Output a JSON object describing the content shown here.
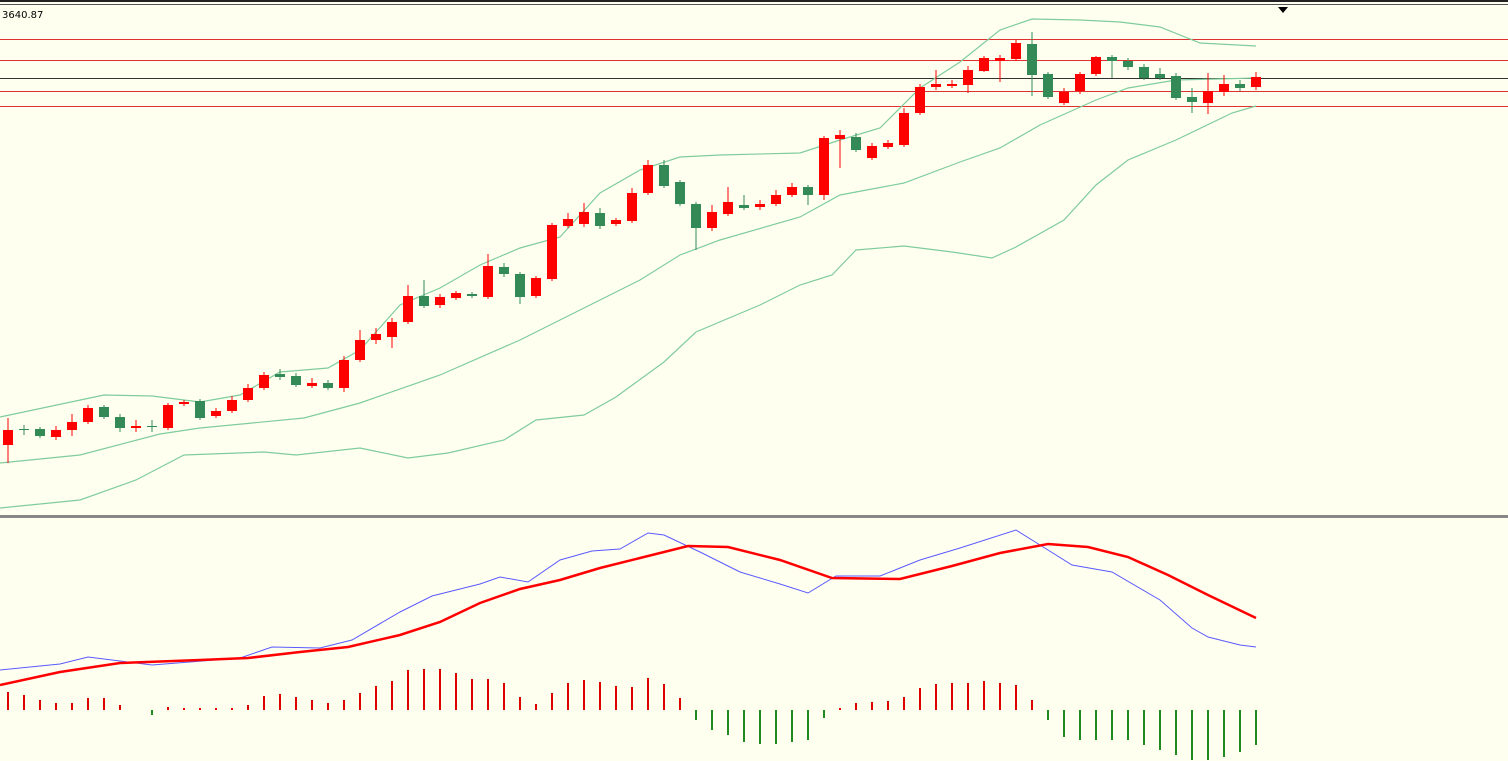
{
  "chart_data": [
    {
      "type": "candlestick",
      "label": "3640.87",
      "ylim": [
        3203,
        3713
      ],
      "up_color": "#ff0000",
      "down_color": "#338a56",
      "open": [
        3273,
        3289,
        3289,
        3281,
        3288,
        3296,
        3311,
        3301,
        3290,
        3292,
        3290,
        3314,
        3317,
        3302,
        3307,
        3318,
        3330,
        3344,
        3342,
        3332,
        3335,
        3330,
        3358,
        3378,
        3381,
        3396,
        3422,
        3413,
        3420,
        3424,
        3421,
        3451,
        3444,
        3422,
        3439,
        3492,
        3494,
        3505,
        3494,
        3497,
        3525,
        3553,
        3536,
        3514,
        3490,
        3504,
        3513,
        3511,
        3514,
        3523,
        3531,
        3523,
        3579,
        3581,
        3560,
        3571,
        3573,
        3605,
        3631,
        3632,
        3633,
        3647,
        3657,
        3659,
        3674,
        3644,
        3615,
        3627,
        3644,
        3661,
        3657,
        3651,
        3644,
        3642,
        3621,
        3615,
        3626,
        3634,
        3631
      ],
      "high": [
        3300,
        3293,
        3291,
        3292,
        3304,
        3313,
        3313,
        3304,
        3298,
        3298,
        3315,
        3318,
        3319,
        3310,
        3322,
        3334,
        3346,
        3349,
        3345,
        3340,
        3338,
        3362,
        3388,
        3390,
        3400,
        3433,
        3438,
        3424,
        3427,
        3426,
        3464,
        3455,
        3446,
        3442,
        3495,
        3505,
        3515,
        3510,
        3500,
        3530,
        3558,
        3558,
        3538,
        3516,
        3513,
        3531,
        3523,
        3518,
        3528,
        3535,
        3533,
        3582,
        3588,
        3585,
        3575,
        3578,
        3610,
        3634,
        3648,
        3638,
        3652,
        3662,
        3663,
        3678,
        3686,
        3646,
        3630,
        3646,
        3662,
        3663,
        3660,
        3654,
        3650,
        3645,
        3630,
        3645,
        3643,
        3638,
        3646
      ],
      "low": [
        3255,
        3283,
        3280,
        3278,
        3282,
        3294,
        3299,
        3286,
        3286,
        3286,
        3288,
        3312,
        3298,
        3300,
        3305,
        3316,
        3328,
        3338,
        3331,
        3330,
        3328,
        3326,
        3356,
        3374,
        3370,
        3394,
        3410,
        3410,
        3418,
        3420,
        3419,
        3441,
        3414,
        3420,
        3437,
        3490,
        3491,
        3489,
        3492,
        3495,
        3523,
        3530,
        3512,
        3468,
        3487,
        3502,
        3508,
        3508,
        3512,
        3521,
        3513,
        3518,
        3550,
        3566,
        3558,
        3569,
        3571,
        3603,
        3628,
        3630,
        3625,
        3646,
        3636,
        3657,
        3622,
        3619,
        3613,
        3624,
        3642,
        3640,
        3648,
        3638,
        3638,
        3618,
        3605,
        3604,
        3622,
        3627,
        3628
      ],
      "close": [
        3288,
        3288,
        3282,
        3288,
        3296,
        3310,
        3301,
        3290,
        3292,
        3291,
        3313,
        3316,
        3300,
        3307,
        3318,
        3330,
        3343,
        3341,
        3333,
        3335,
        3330,
        3358,
        3378,
        3384,
        3396,
        3422,
        3412,
        3421,
        3425,
        3422,
        3452,
        3444,
        3421,
        3440,
        3493,
        3499,
        3506,
        3492,
        3498,
        3525,
        3553,
        3532,
        3514,
        3490,
        3506,
        3516,
        3510,
        3514,
        3523,
        3531,
        3523,
        3580,
        3583,
        3568,
        3572,
        3575,
        3605,
        3631,
        3634,
        3634,
        3648,
        3660,
        3660,
        3675,
        3643,
        3621,
        3626,
        3644,
        3661,
        3657,
        3651,
        3640,
        3640,
        3620,
        3616,
        3627,
        3634,
        3630,
        3641
      ],
      "levels": [
        {
          "value": 3679,
          "color": "#e03030"
        },
        {
          "value": 3658,
          "color": "#e03030"
        },
        {
          "value": 3640,
          "color": "#333333"
        },
        {
          "value": 3627,
          "color": "#e03030"
        },
        {
          "value": 3612,
          "color": "#e03030"
        }
      ],
      "series": [
        {
          "color": "#7fcc9c",
          "x": [
            -0.5,
            6,
            9,
            12,
            14.5,
            17,
            20,
            22,
            24.5,
            27,
            29.5,
            32,
            34.5,
            37,
            39.5,
            42,
            44.5,
            49.5,
            52,
            54.5,
            57,
            59.5,
            62,
            64,
            67,
            69.5,
            72,
            74.5,
            78
          ],
          "values": [
            3301,
            3323,
            3322,
            3316,
            3323,
            3346,
            3350,
            3368,
            3413,
            3430,
            3453,
            3470,
            3481,
            3525,
            3548,
            3561,
            3563,
            3565,
            3578,
            3590,
            3630,
            3656,
            3688,
            3699,
            3698,
            3696,
            3691,
            3675,
            3672
          ]
        },
        {
          "color": "#7fcc9c",
          "x": [
            -0.5,
            4.5,
            9.5,
            12,
            18.5,
            22,
            27,
            32,
            37,
            39.5,
            42,
            44.5,
            49.5,
            52,
            56,
            59.5,
            62,
            64.5,
            68,
            70,
            73,
            78
          ],
          "values": [
            3255,
            3263,
            3284,
            3290,
            3300,
            3315,
            3343,
            3378,
            3418,
            3438,
            3463,
            3478,
            3501,
            3523,
            3535,
            3556,
            3570,
            3593,
            3618,
            3630,
            3638,
            3640
          ]
        },
        {
          "color": "#7fcc9c",
          "x": [
            -0.5,
            4.5,
            8,
            11,
            16,
            18,
            22,
            25,
            27.5,
            31,
            33,
            36,
            38,
            41,
            43,
            47,
            49.5,
            51.5,
            53,
            56,
            59,
            61.5,
            63,
            66,
            68,
            70,
            73,
            76.5,
            78
          ],
          "values": [
            3210,
            3218,
            3238,
            3263,
            3266,
            3263,
            3270,
            3260,
            3265,
            3278,
            3298,
            3303,
            3321,
            3356,
            3386,
            3413,
            3433,
            3443,
            3468,
            3472,
            3466,
            3460,
            3471,
            3498,
            3533,
            3558,
            3578,
            3605,
            3612
          ]
        }
      ]
    },
    {
      "type": "macd",
      "ylim": [
        -51,
        190
      ],
      "up_color": "#dd0000",
      "down_color": "#1f8a1f",
      "values": [
        18,
        15,
        10,
        7,
        7,
        12,
        12,
        5,
        0,
        -5,
        3,
        2,
        2,
        2,
        2,
        5,
        14,
        16,
        13,
        10,
        7,
        10,
        17,
        24,
        29,
        40,
        41,
        41,
        37,
        31,
        31,
        27,
        13,
        6,
        17,
        27,
        30,
        28,
        24,
        23,
        32,
        26,
        12,
        -10,
        -20,
        -25,
        -32,
        -34,
        -34,
        -32,
        -30,
        -8,
        2,
        7,
        8,
        9,
        13,
        22,
        26,
        27,
        27,
        29,
        27,
        25,
        10,
        -10,
        -27,
        -30,
        -30,
        -30,
        -30,
        -35,
        -40,
        -45,
        -50,
        -50,
        -47,
        -42,
        -35
      ],
      "series": [
        {
          "color": "#5a5aff",
          "x": [
            -0.5,
            3.25,
            5,
            9,
            14.5,
            16.5,
            19.5,
            21.5,
            24.5,
            26.5,
            29.5,
            30.75,
            32.5,
            34.5,
            36.5,
            38.25,
            40,
            41,
            43.25,
            45.75,
            48.25,
            50,
            51.75,
            54.5,
            57,
            59.5,
            63,
            64.5,
            66.5,
            69,
            72,
            74,
            75,
            77,
            78
          ],
          "values": [
            40,
            46,
            53,
            45,
            52,
            63,
            62,
            70,
            98,
            114,
            126,
            133,
            128,
            150,
            159,
            161,
            177,
            175,
            158,
            138,
            126,
            117,
            134,
            134,
            150,
            162,
            180,
            165,
            145,
            138,
            110,
            82,
            73,
            65,
            63
          ]
        },
        {
          "color": "#ff0000",
          "x": [
            -0.5,
            3.25,
            7,
            12,
            15,
            18.25,
            21.25,
            24.5,
            27,
            29.5,
            32,
            34.5,
            37,
            39.5,
            42.5,
            45,
            48.25,
            51.5,
            55.75,
            59,
            62,
            65,
            67.5,
            70,
            72.5,
            75,
            78
          ],
          "values": [
            25,
            38,
            47,
            50,
            52,
            58,
            63,
            75,
            88,
            107,
            121,
            130,
            142,
            152,
            164,
            163,
            150,
            132,
            131,
            144,
            157,
            166,
            163,
            153,
            135,
            115,
            92
          ]
        }
      ]
    }
  ]
}
